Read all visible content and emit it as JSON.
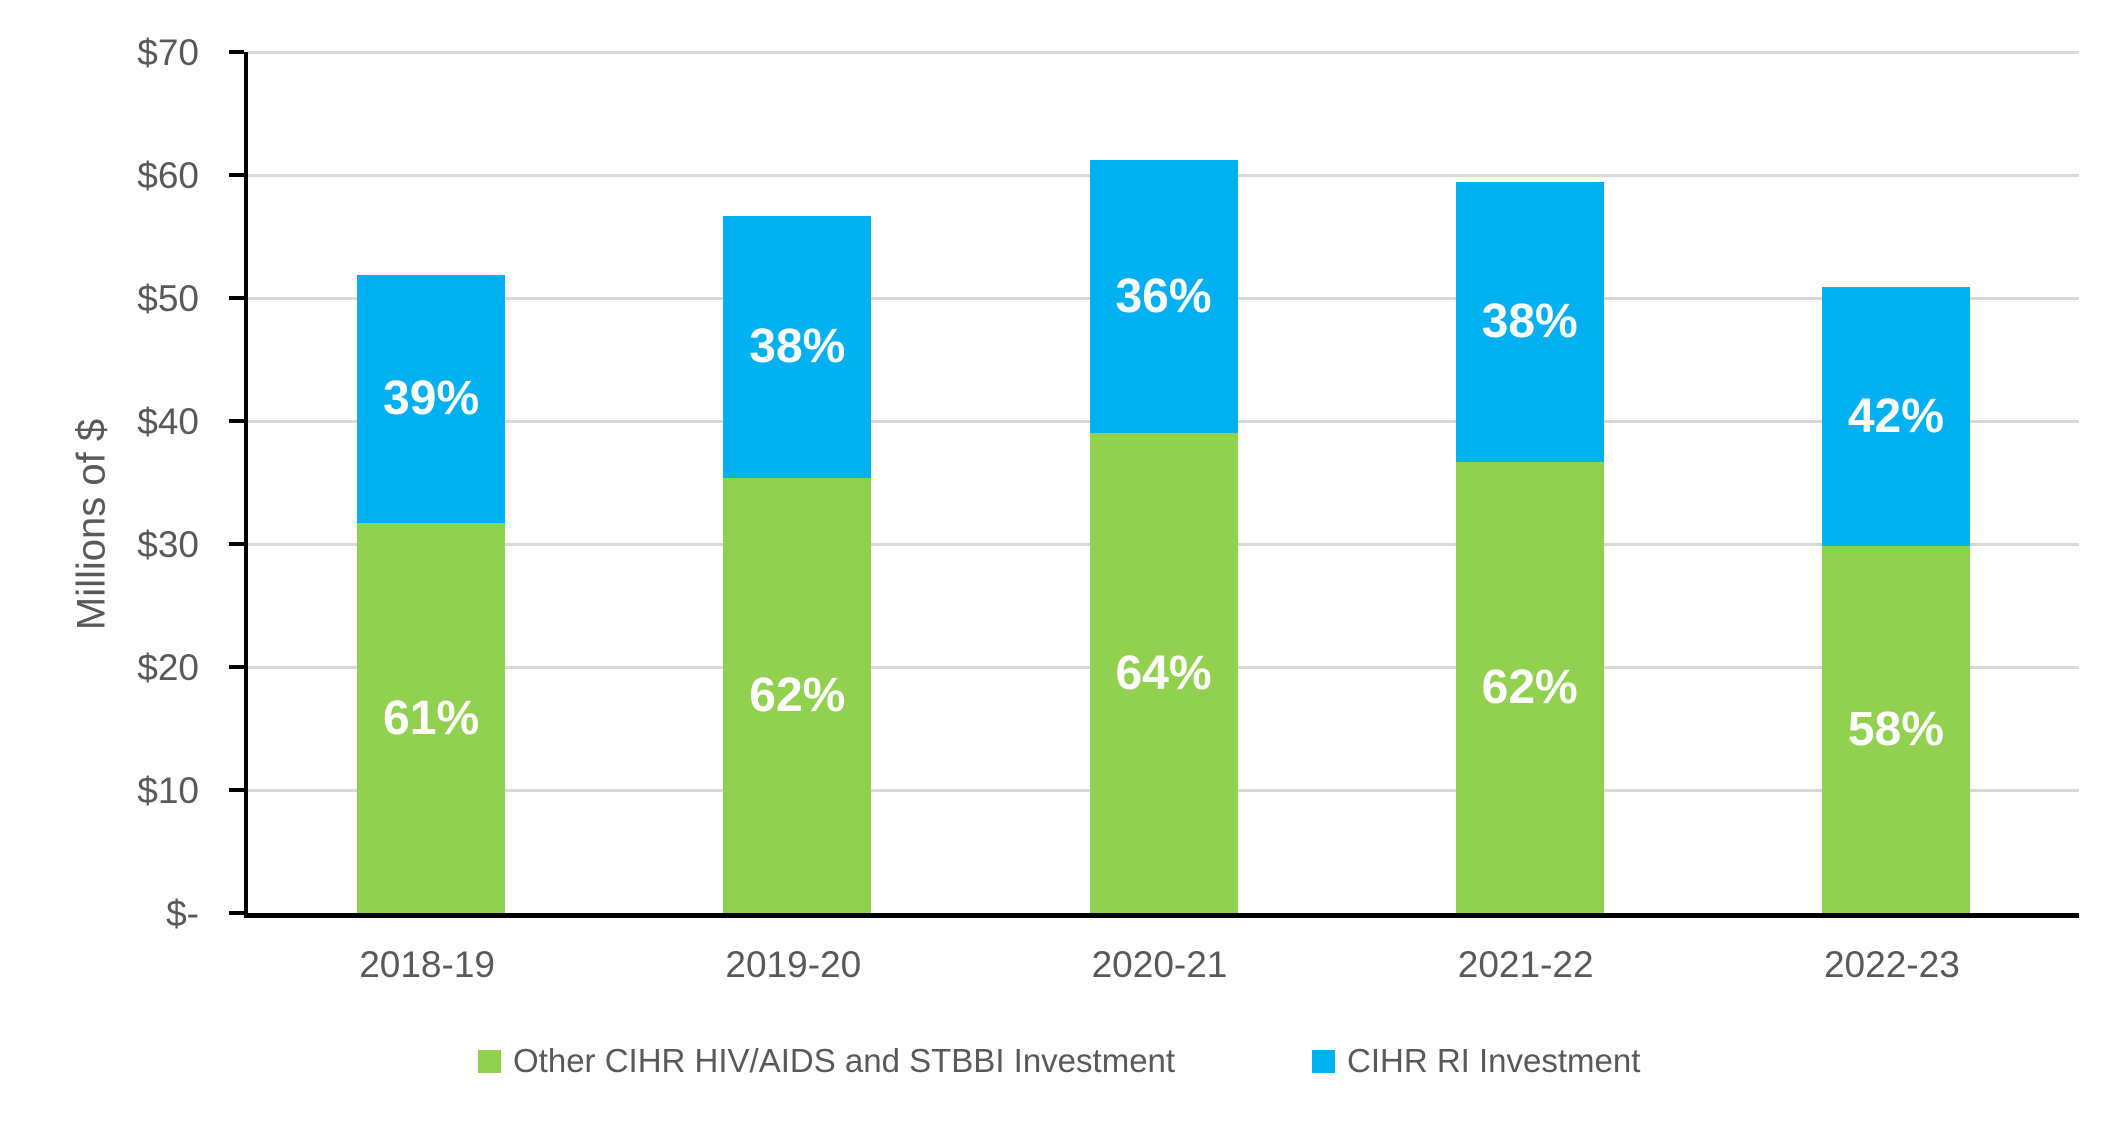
{
  "chart_data": {
    "type": "bar",
    "stacked": true,
    "title": "",
    "xlabel": "",
    "ylabel": "Millions of $",
    "ylim": [
      0,
      70
    ],
    "ytick_step": 10,
    "ytick_labels": [
      "$-",
      "$10",
      "$20",
      "$30",
      "$40",
      "$50",
      "$60",
      "$70"
    ],
    "grid": true,
    "legend_position": "bottom",
    "categories": [
      "2018-19",
      "2019-20",
      "2020-21",
      "2021-22",
      "2022-23"
    ],
    "series": [
      {
        "name": "Other CIHR HIV/AIDS and STBBI Investment",
        "color": "#92D050",
        "values": [
          31.7,
          35.4,
          39.0,
          36.7,
          29.8
        ],
        "segment_labels": [
          "61%",
          "62%",
          "64%",
          "62%",
          "58%"
        ]
      },
      {
        "name": "CIHR RI Investment",
        "color": "#00B0F0",
        "values": [
          20.2,
          21.3,
          22.2,
          22.7,
          21.1
        ],
        "segment_labels": [
          "39%",
          "38%",
          "36%",
          "38%",
          "42%"
        ]
      }
    ],
    "totals": [
      51.9,
      56.7,
      61.2,
      59.4,
      50.8
    ]
  }
}
